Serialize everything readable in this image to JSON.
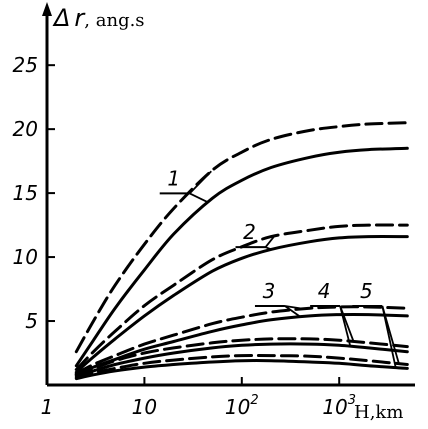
{
  "chart_data": {
    "type": "line",
    "xscale": "log",
    "xlim": [
      1,
      6000
    ],
    "ylim": [
      0,
      29
    ],
    "ylabel_symbol": "Δ",
    "ylabel_var": "r",
    "ylabel_unit": ", ang.s",
    "xlabel": "H,km",
    "yticks": [
      5,
      10,
      15,
      20,
      25
    ],
    "xticks": [
      {
        "base": "1",
        "sup": "",
        "value": 1
      },
      {
        "base": "10",
        "sup": "",
        "value": 10
      },
      {
        "base": "10",
        "sup": "2",
        "value": 100
      },
      {
        "base": "10",
        "sup": "3",
        "value": 1000
      }
    ],
    "series": [
      {
        "label": "1",
        "style": "solid",
        "x": [
          2,
          3,
          5,
          10,
          20,
          50,
          100,
          200,
          500,
          1000,
          2000,
          5000
        ],
        "y": [
          1.5,
          3.5,
          6.0,
          9.0,
          11.8,
          14.6,
          16.0,
          17.0,
          17.8,
          18.2,
          18.4,
          18.5
        ]
      },
      {
        "label": "1",
        "style": "dashed",
        "x": [
          2,
          3,
          5,
          10,
          20,
          50,
          100,
          200,
          500,
          1000,
          2000,
          5000
        ],
        "y": [
          2.6,
          5.0,
          7.8,
          11.0,
          13.8,
          16.8,
          18.2,
          19.2,
          19.9,
          20.2,
          20.4,
          20.5
        ]
      },
      {
        "label": "2",
        "style": "solid",
        "x": [
          2,
          3,
          5,
          10,
          20,
          50,
          100,
          200,
          500,
          1000,
          2000,
          5000
        ],
        "y": [
          1.0,
          2.2,
          3.6,
          5.4,
          7.0,
          8.9,
          9.9,
          10.6,
          11.2,
          11.5,
          11.6,
          11.6
        ]
      },
      {
        "label": "2",
        "style": "dashed",
        "x": [
          2,
          3,
          5,
          10,
          20,
          50,
          100,
          200,
          500,
          1000,
          2000,
          5000
        ],
        "y": [
          1.2,
          2.6,
          4.2,
          6.2,
          7.8,
          9.8,
          10.8,
          11.6,
          12.1,
          12.4,
          12.5,
          12.5
        ]
      },
      {
        "label": "3",
        "style": "solid",
        "x": [
          2,
          3,
          5,
          10,
          20,
          50,
          100,
          200,
          500,
          1000,
          2000,
          5000
        ],
        "y": [
          0.8,
          1.4,
          2.0,
          2.8,
          3.4,
          4.2,
          4.7,
          5.1,
          5.4,
          5.5,
          5.5,
          5.4
        ]
      },
      {
        "label": "3",
        "style": "dashed",
        "x": [
          2,
          3,
          5,
          10,
          20,
          50,
          100,
          200,
          500,
          1000,
          2000,
          5000
        ],
        "y": [
          0.9,
          1.6,
          2.3,
          3.2,
          3.9,
          4.8,
          5.3,
          5.7,
          6.0,
          6.1,
          6.1,
          6.0
        ]
      },
      {
        "label": "4",
        "style": "solid",
        "x": [
          2,
          3,
          5,
          10,
          20,
          50,
          100,
          200,
          500,
          1000,
          2000,
          5000
        ],
        "y": [
          0.7,
          1.1,
          1.6,
          2.1,
          2.5,
          2.9,
          3.1,
          3.2,
          3.2,
          3.1,
          2.9,
          2.6
        ]
      },
      {
        "label": "4",
        "style": "dashed",
        "x": [
          2,
          3,
          5,
          10,
          20,
          50,
          100,
          200,
          500,
          1000,
          2000,
          5000
        ],
        "y": [
          0.8,
          1.3,
          1.9,
          2.5,
          2.9,
          3.3,
          3.5,
          3.6,
          3.6,
          3.5,
          3.3,
          3.0
        ]
      },
      {
        "label": "5",
        "style": "solid",
        "x": [
          2,
          3,
          5,
          10,
          20,
          50,
          100,
          200,
          500,
          1000,
          2000,
          5000
        ],
        "y": [
          0.5,
          0.8,
          1.1,
          1.4,
          1.6,
          1.8,
          1.9,
          1.9,
          1.8,
          1.7,
          1.5,
          1.3
        ]
      },
      {
        "label": "5",
        "style": "dashed",
        "x": [
          2,
          3,
          5,
          10,
          20,
          50,
          100,
          200,
          500,
          1000,
          2000,
          5000
        ],
        "y": [
          0.6,
          0.95,
          1.3,
          1.7,
          1.95,
          2.2,
          2.3,
          2.3,
          2.25,
          2.1,
          1.9,
          1.6
        ]
      }
    ],
    "annotations": [
      {
        "text": "1",
        "x": 20,
        "y": 15.6
      },
      {
        "text": "2",
        "x": 120,
        "y": 11.4
      },
      {
        "text": "3",
        "x": 190,
        "y": 6.8
      },
      {
        "text": "4",
        "x": 700,
        "y": 6.8
      },
      {
        "text": "5",
        "x": 1900,
        "y": 6.8
      }
    ]
  }
}
